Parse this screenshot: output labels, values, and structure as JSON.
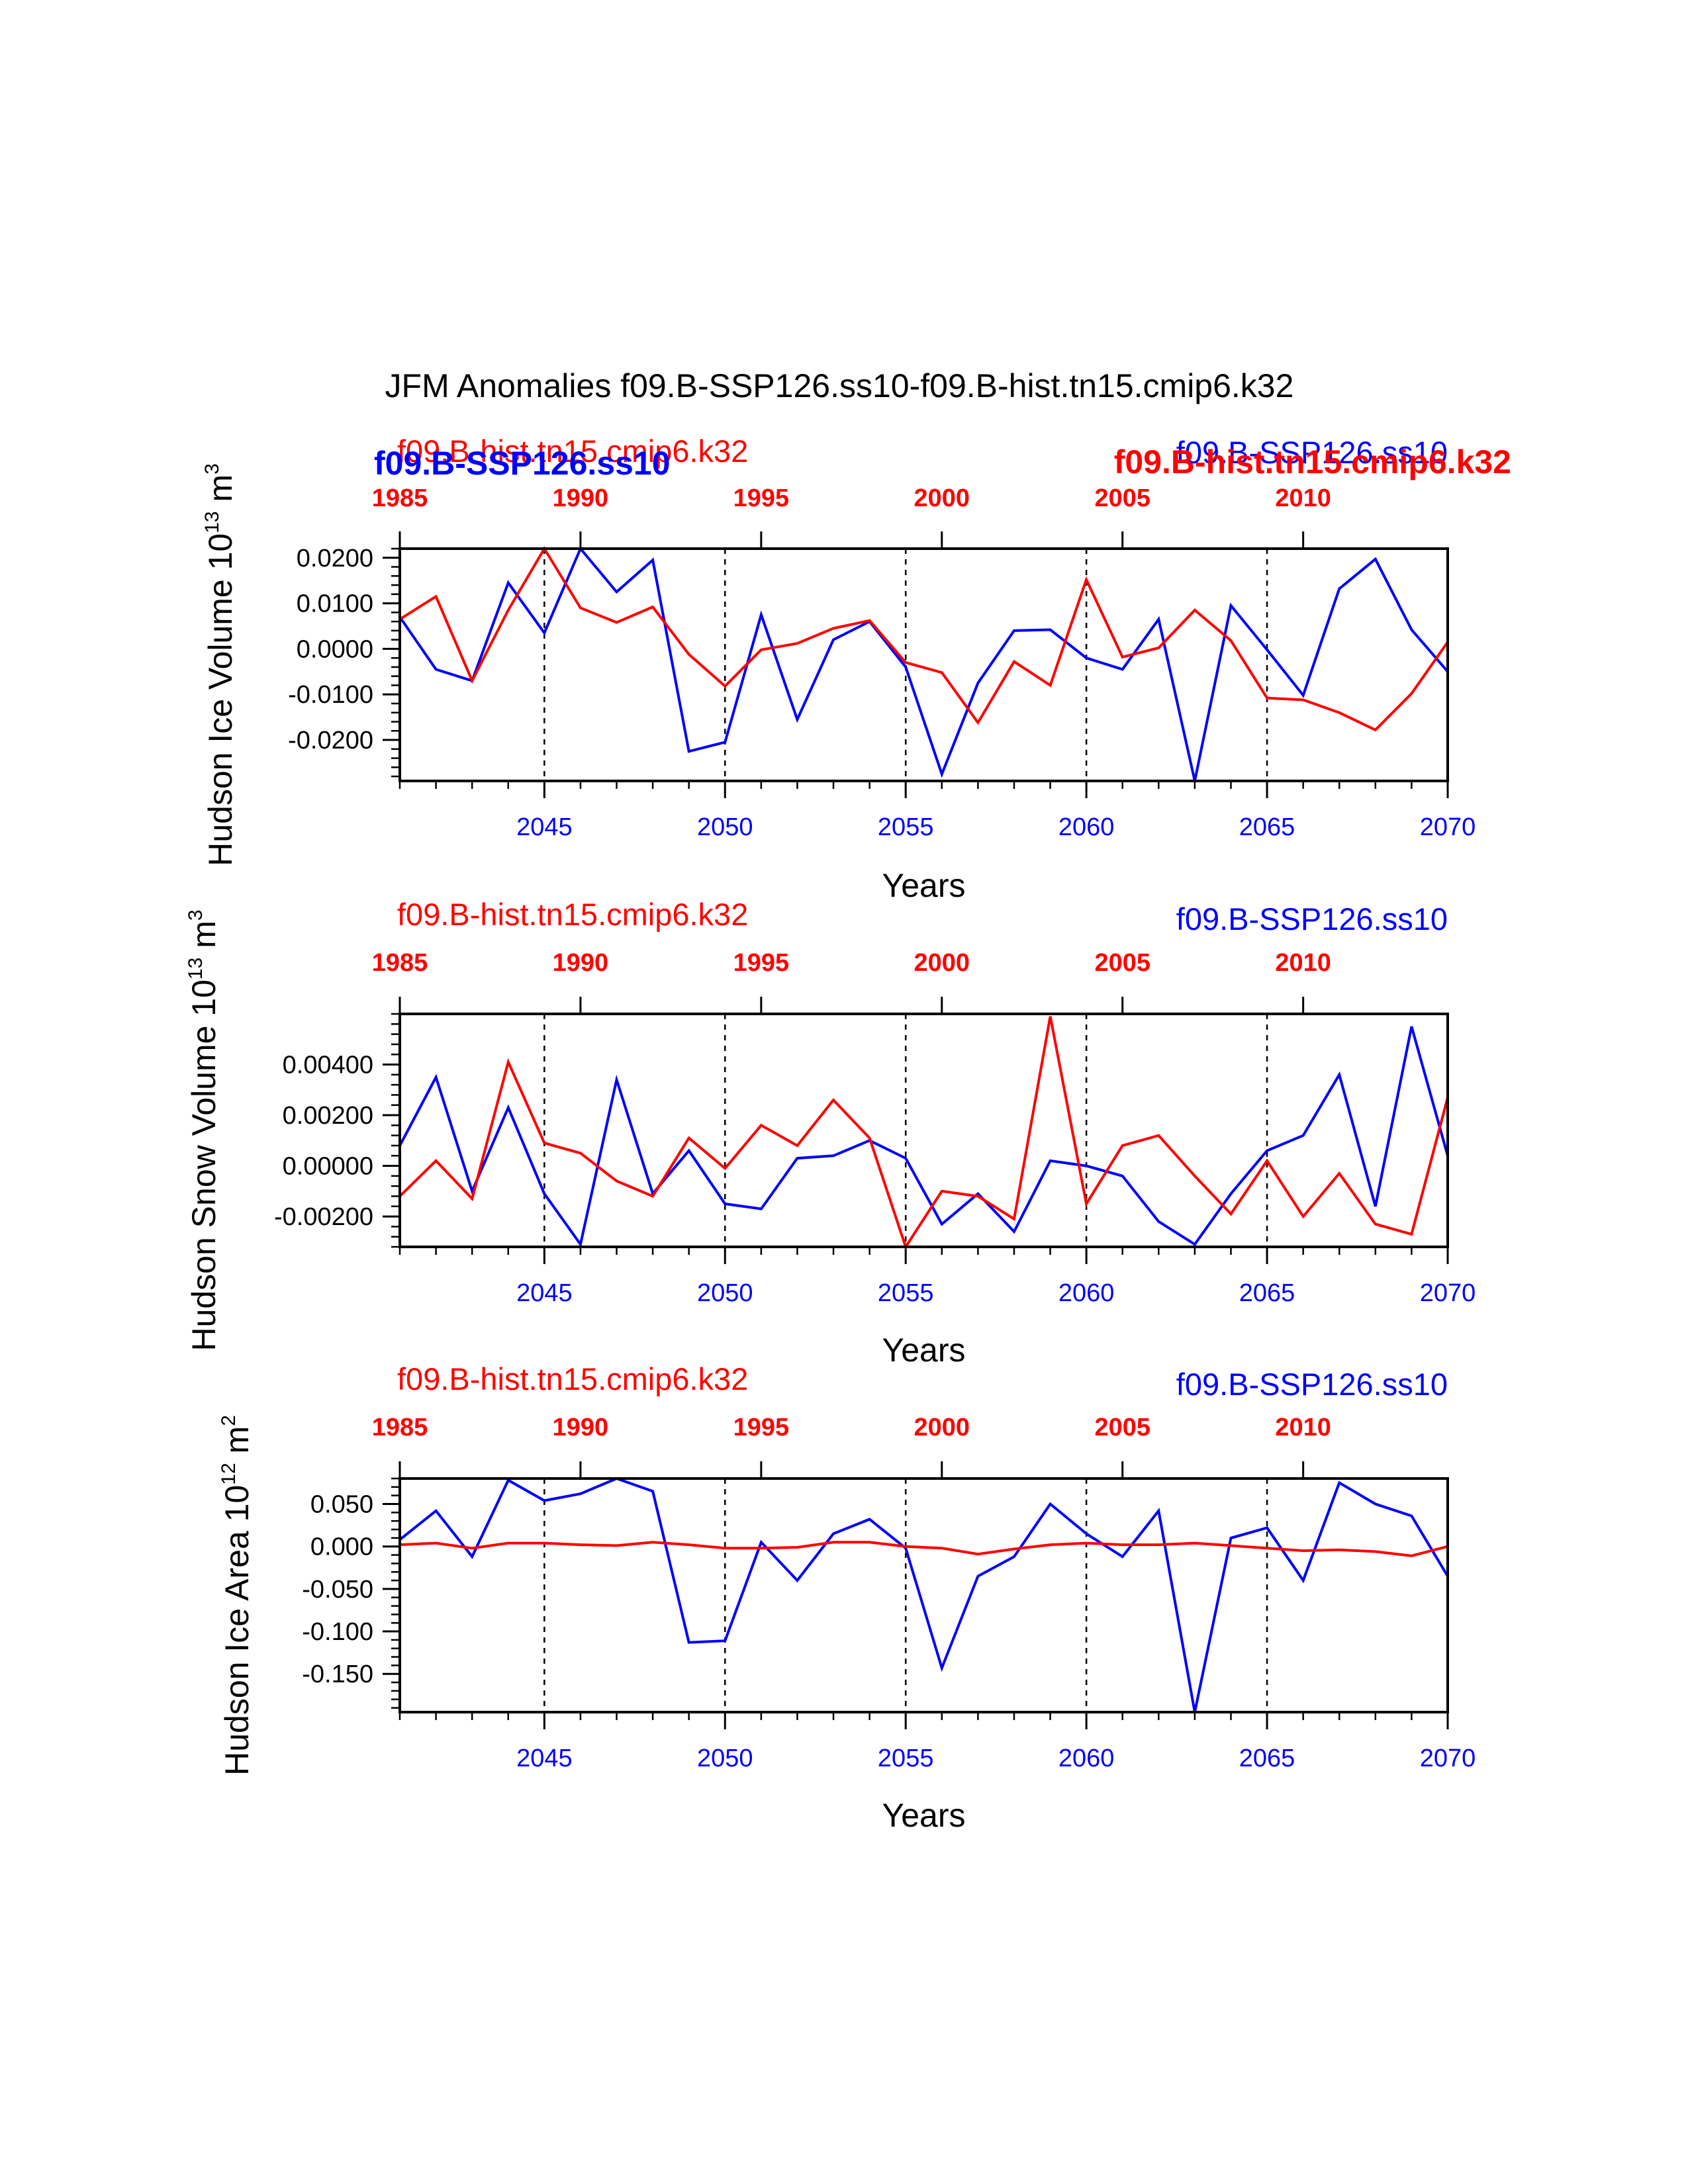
{
  "title": "JFM Anomalies f09.B-SSP126.ss10-f09.B-hist.tn15.cmip6.k32",
  "colors": {
    "ssp": "#0000ff",
    "hist": "#ff0000",
    "axis": "#000000"
  },
  "chart_data": [
    {
      "type": "line",
      "id": "ice_volume",
      "ylabel": "Hudson Ice Volume 10",
      "ylabel_exp": "13",
      "ylabel_unit": " m",
      "ylabel_unit_exp": "3",
      "xlabel": "Years",
      "xlim": [
        2041,
        2070
      ],
      "ylim": [
        -0.029,
        0.022
      ],
      "yticks": [
        0.02,
        0.01,
        0.0,
        -0.01,
        -0.02
      ],
      "ytick_labels": [
        "0.0200",
        "0.0100",
        "0.0000",
        "-0.0100",
        "-0.0200"
      ],
      "yminor": 0.002,
      "x_bottom_ticks": [
        2045,
        2050,
        2055,
        2060,
        2065,
        2070
      ],
      "x_top_ticks": [
        1985,
        1990,
        1995,
        2000,
        2005,
        2010
      ],
      "x_top_offset": -56,
      "vlines": [
        2045,
        2050,
        2055,
        2060,
        2065
      ],
      "label_hist_left": "f09.B-hist.tn15.cmip6.k32",
      "label_ssp_right": "f09.B-SSP126.ss10",
      "label_ssp_left_bold": "f09.B-SSP126.ss10",
      "label_hist_right_bold": "f09.B-hist.tn15.cmip6.k32",
      "series": [
        {
          "name": "f09.B-SSP126.ss10",
          "color": "#0000ff",
          "x": [
            2041,
            2042,
            2043,
            2044,
            2045,
            2046,
            2047,
            2048,
            2049,
            2050,
            2051,
            2052,
            2053,
            2054,
            2055,
            2056,
            2057,
            2058,
            2059,
            2060,
            2061,
            2062,
            2063,
            2064,
            2065,
            2066,
            2067,
            2068,
            2069,
            2070
          ],
          "values": [
            0.007,
            -0.0045,
            -0.007,
            0.0145,
            0.0035,
            0.022,
            0.0125,
            0.0195,
            -0.0225,
            -0.0205,
            0.0075,
            -0.0155,
            0.002,
            0.006,
            -0.004,
            -0.0275,
            -0.0075,
            0.004,
            0.0042,
            -0.002,
            -0.0045,
            0.0065,
            -0.029,
            0.0095,
            -0.0002,
            -0.0102,
            0.0132,
            0.0197,
            0.0042,
            -0.005
          ]
        },
        {
          "name": "f09.B-hist.tn15.cmip6.k32",
          "color": "#ff0000",
          "x": [
            2041,
            2042,
            2043,
            2044,
            2045,
            2046,
            2047,
            2048,
            2049,
            2050,
            2051,
            2052,
            2053,
            2054,
            2055,
            2056,
            2057,
            2058,
            2059,
            2060,
            2061,
            2062,
            2063,
            2064,
            2065,
            2066,
            2067,
            2068,
            2069,
            2070
          ],
          "values": [
            0.0065,
            0.0115,
            -0.007,
            0.0085,
            0.022,
            0.009,
            0.0058,
            0.0092,
            -0.0012,
            -0.0082,
            -0.0002,
            0.0012,
            0.0045,
            0.0062,
            -0.003,
            -0.0052,
            -0.0162,
            -0.0028,
            -0.008,
            0.0152,
            -0.0018,
            0.0002,
            0.0085,
            0.0018,
            -0.0108,
            -0.0112,
            -0.014,
            -0.0178,
            -0.0098,
            0.0015
          ]
        }
      ]
    },
    {
      "type": "line",
      "id": "snow_volume",
      "ylabel": "Hudson Snow Volume 10",
      "ylabel_exp": "13",
      "ylabel_unit": " m",
      "ylabel_unit_exp": "3",
      "xlabel": "Years",
      "xlim": [
        2041,
        2070
      ],
      "ylim": [
        -0.0032,
        0.006
      ],
      "yticks": [
        0.004,
        0.002,
        0.0,
        -0.002
      ],
      "ytick_labels": [
        "0.00400",
        "0.00200",
        "0.00000",
        "-0.00200"
      ],
      "yminor": 0.0004,
      "x_bottom_ticks": [
        2045,
        2050,
        2055,
        2060,
        2065,
        2070
      ],
      "x_top_ticks": [
        1985,
        1990,
        1995,
        2000,
        2005,
        2010
      ],
      "x_top_offset": -56,
      "vlines": [
        2045,
        2050,
        2055,
        2060,
        2065
      ],
      "label_hist_left": "f09.B-hist.tn15.cmip6.k32",
      "label_ssp_right": "f09.B-SSP126.ss10",
      "series": [
        {
          "name": "f09.B-SSP126.ss10",
          "color": "#0000ff",
          "x": [
            2041,
            2042,
            2043,
            2044,
            2045,
            2046,
            2047,
            2048,
            2049,
            2050,
            2051,
            2052,
            2053,
            2054,
            2055,
            2056,
            2057,
            2058,
            2059,
            2060,
            2061,
            2062,
            2063,
            2064,
            2065,
            2066,
            2067,
            2068,
            2069,
            2070
          ],
          "values": [
            0.0008,
            0.0035,
            -0.001,
            0.0023,
            -0.0011,
            -0.0031,
            0.0034,
            -0.0011,
            0.0006,
            -0.0015,
            -0.0017,
            0.0003,
            0.0004,
            0.001,
            0.0003,
            -0.0023,
            -0.0011,
            -0.0026,
            0.0002,
            0.0,
            -0.0004,
            -0.0022,
            -0.0031,
            -0.0011,
            0.0006,
            0.0012,
            0.0036,
            -0.0016,
            0.0055,
            0.0004
          ]
        },
        {
          "name": "f09.B-hist.tn15.cmip6.k32",
          "color": "#ff0000",
          "x": [
            2041,
            2042,
            2043,
            2044,
            2045,
            2046,
            2047,
            2048,
            2049,
            2050,
            2051,
            2052,
            2053,
            2054,
            2055,
            2056,
            2057,
            2058,
            2059,
            2060,
            2061,
            2062,
            2063,
            2064,
            2065,
            2066,
            2067,
            2068,
            2069,
            2070
          ],
          "values": [
            -0.0012,
            0.0002,
            -0.0013,
            0.0041,
            0.0009,
            0.0005,
            -0.0006,
            -0.0012,
            0.0011,
            -0.0001,
            0.0016,
            0.0008,
            0.0026,
            0.0011,
            -0.0032,
            -0.001,
            -0.0012,
            -0.0021,
            0.0059,
            -0.0015,
            0.0008,
            0.0012,
            -0.0004,
            -0.0019,
            0.0002,
            -0.002,
            -0.0003,
            -0.0023,
            -0.0027,
            0.0027
          ]
        }
      ]
    },
    {
      "type": "line",
      "id": "ice_area",
      "ylabel": "Hudson Ice Area 10",
      "ylabel_exp": "12",
      "ylabel_unit": " m",
      "ylabel_unit_exp": "2",
      "xlabel": "Years",
      "xlim": [
        2041,
        2070
      ],
      "ylim": [
        -0.195,
        0.08
      ],
      "yticks": [
        0.05,
        0.0,
        -0.05,
        -0.1,
        -0.15
      ],
      "ytick_labels": [
        "0.050",
        "0.000",
        "-0.050",
        "-0.100",
        "-0.150"
      ],
      "yminor": 0.01,
      "x_bottom_ticks": [
        2045,
        2050,
        2055,
        2060,
        2065,
        2070
      ],
      "x_top_ticks": [
        1985,
        1990,
        1995,
        2000,
        2005,
        2010
      ],
      "x_top_offset": -56,
      "vlines": [
        2045,
        2050,
        2055,
        2060,
        2065
      ],
      "label_hist_left": "f09.B-hist.tn15.cmip6.k32",
      "label_ssp_right": "f09.B-SSP126.ss10",
      "series": [
        {
          "name": "f09.B-SSP126.ss10",
          "color": "#0000ff",
          "x": [
            2041,
            2042,
            2043,
            2044,
            2045,
            2046,
            2047,
            2048,
            2049,
            2050,
            2051,
            2052,
            2053,
            2054,
            2055,
            2056,
            2057,
            2058,
            2059,
            2060,
            2061,
            2062,
            2063,
            2064,
            2065,
            2066,
            2067,
            2068,
            2069,
            2070
          ],
          "values": [
            0.008,
            0.042,
            -0.012,
            0.078,
            0.054,
            0.062,
            0.08,
            0.065,
            -0.113,
            -0.111,
            0.005,
            -0.04,
            0.015,
            0.032,
            -0.002,
            -0.143,
            -0.035,
            -0.012,
            0.05,
            0.015,
            -0.012,
            0.042,
            -0.195,
            0.01,
            0.022,
            -0.04,
            0.075,
            0.05,
            0.036,
            -0.035
          ]
        },
        {
          "name": "f09.B-hist.tn15.cmip6.k32",
          "color": "#ff0000",
          "x": [
            2041,
            2042,
            2043,
            2044,
            2045,
            2046,
            2047,
            2048,
            2049,
            2050,
            2051,
            2052,
            2053,
            2054,
            2055,
            2056,
            2057,
            2058,
            2059,
            2060,
            2061,
            2062,
            2063,
            2064,
            2065,
            2066,
            2067,
            2068,
            2069,
            2070
          ],
          "values": [
            0.002,
            0.004,
            -0.002,
            0.004,
            0.004,
            0.002,
            0.001,
            0.005,
            0.002,
            -0.002,
            -0.002,
            -0.001,
            0.005,
            0.005,
            0.0,
            -0.002,
            -0.009,
            -0.003,
            0.002,
            0.004,
            0.002,
            0.002,
            0.004,
            0.001,
            -0.002,
            -0.005,
            -0.004,
            -0.006,
            -0.011,
            0.0
          ]
        }
      ]
    }
  ]
}
